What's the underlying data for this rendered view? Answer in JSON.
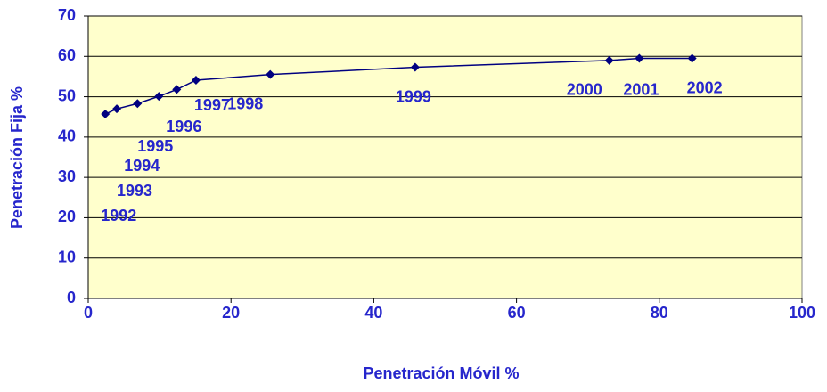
{
  "chart_data": {
    "type": "line",
    "xlabel": "Penetración Móvil %",
    "ylabel": "Penetración Fija %",
    "x": [
      2.4,
      4.0,
      6.9,
      9.9,
      12.4,
      15.1,
      25.5,
      45.8,
      73.0,
      77.2,
      84.6
    ],
    "series": [
      {
        "color": "#000080",
        "values": [
          45.7,
          47.0,
          48.3,
          50.1,
          51.8,
          54.1,
          55.5,
          57.3,
          59.0,
          59.5,
          59.5
        ],
        "labels": [
          "1992",
          "1993",
          "1994",
          "1995",
          "1996",
          "1997",
          "1998",
          "1999",
          "2000",
          "2001",
          "2002"
        ]
      }
    ],
    "xlim": [
      0,
      100
    ],
    "xticks": [
      0,
      20,
      40,
      60,
      80,
      100
    ],
    "ylim": [
      0,
      70
    ],
    "yticks": [
      0,
      10,
      20,
      30,
      40,
      50,
      60,
      70
    ],
    "grid": true,
    "background": "#ffffcc",
    "text_color": "#2626cc"
  }
}
